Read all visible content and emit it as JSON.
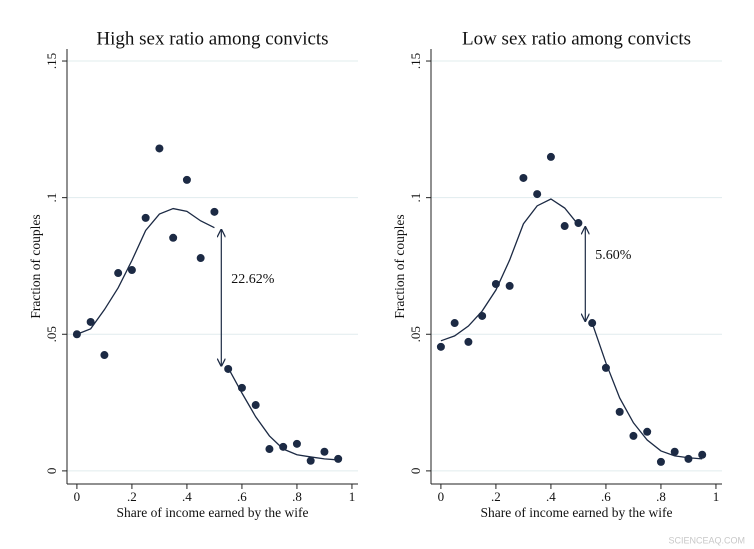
{
  "chart_data": [
    {
      "type": "scatter",
      "title": "High sex ratio among convicts",
      "xlabel": "Share of income earned by the wife",
      "ylabel": "Fraction of couples",
      "xlim": [
        -0.036,
        1.022
      ],
      "ylim": [
        -0.0048,
        0.1544
      ],
      "xticks": [
        0,
        {
          "value": 0.2,
          "label": ".2"
        },
        {
          "value": 0.4,
          "label": ".4"
        },
        {
          "value": 0.6,
          "label": ".6"
        },
        {
          "value": 0.8,
          "label": ".8"
        },
        1
      ],
      "yticks": [
        0,
        {
          "value": 0.05,
          "label": ".05"
        },
        {
          "value": 0.1,
          "label": ".1"
        },
        {
          "value": 0.15,
          "label": ".15"
        }
      ],
      "grid": true,
      "color": "#1c2a44",
      "annotation": "22.62%",
      "points": {
        "x": [
          0,
          0.05,
          0.1,
          0.15,
          0.2,
          0.25,
          0.3,
          0.35,
          0.4,
          0.45,
          0.5,
          0.55,
          0.6,
          0.65,
          0.7,
          0.75,
          0.8,
          0.85,
          0.9,
          0.95
        ],
        "values": [
          0.05,
          0.0545,
          0.0424,
          0.0724,
          0.0735,
          0.0926,
          0.118,
          0.0853,
          0.1065,
          0.0779,
          0.0948,
          0.0373,
          0.0304,
          0.0241,
          0.008,
          0.0088,
          0.0099,
          0.0037,
          0.007,
          0.0044
        ]
      },
      "lines": [
        {
          "x": [
            0,
            0.05,
            0.1,
            0.15,
            0.2,
            0.25,
            0.3,
            0.35,
            0.4,
            0.45,
            0.5
          ],
          "values": [
            0.05,
            0.052,
            0.059,
            0.067,
            0.077,
            0.088,
            0.094,
            0.096,
            0.095,
            0.0915,
            0.089
          ]
        },
        {
          "x": [
            0.55,
            0.6,
            0.65,
            0.7,
            0.75,
            0.8,
            0.85,
            0.9,
            0.95
          ],
          "values": [
            0.0377,
            0.0285,
            0.0198,
            0.0128,
            0.008,
            0.0059,
            0.0051,
            0.0044,
            0.004
          ]
        }
      ]
    },
    {
      "type": "scatter",
      "title": "Low sex ratio among convicts",
      "xlabel": "Share of income earned by the wife",
      "ylabel": "Fraction of couples",
      "xlim": [
        -0.036,
        1.022
      ],
      "ylim": [
        -0.0048,
        0.1544
      ],
      "xticks": [
        0,
        {
          "value": 0.2,
          "label": ".2"
        },
        {
          "value": 0.4,
          "label": ".4"
        },
        {
          "value": 0.6,
          "label": ".6"
        },
        {
          "value": 0.8,
          "label": ".8"
        },
        1
      ],
      "yticks": [
        0,
        {
          "value": 0.05,
          "label": ".05"
        },
        {
          "value": 0.1,
          "label": ".1"
        },
        {
          "value": 0.15,
          "label": ".15"
        }
      ],
      "grid": true,
      "color": "#1c2a44",
      "annotation": "5.60%",
      "points": {
        "x": [
          0,
          0.05,
          0.1,
          0.15,
          0.2,
          0.25,
          0.3,
          0.35,
          0.4,
          0.45,
          0.5,
          0.55,
          0.6,
          0.65,
          0.7,
          0.75,
          0.8,
          0.85,
          0.9,
          0.95
        ],
        "values": [
          0.0454,
          0.0541,
          0.0472,
          0.0567,
          0.0684,
          0.0677,
          0.1072,
          0.1013,
          0.1149,
          0.0896,
          0.0907,
          0.0541,
          0.0377,
          0.0216,
          0.0128,
          0.0143,
          0.0033,
          0.007,
          0.0044,
          0.0059
        ]
      },
      "lines": [
        {
          "x": [
            0,
            0.05,
            0.1,
            0.15,
            0.2,
            0.25,
            0.3,
            0.35,
            0.4,
            0.45,
            0.5
          ],
          "values": [
            0.0476,
            0.0494,
            0.053,
            0.0585,
            0.0662,
            0.0772,
            0.0904,
            0.097,
            0.0995,
            0.0962,
            0.09
          ]
        },
        {
          "x": [
            0.55,
            0.6,
            0.65,
            0.7,
            0.75,
            0.8,
            0.85,
            0.9,
            0.95
          ],
          "values": [
            0.0541,
            0.0395,
            0.0267,
            0.0176,
            0.0113,
            0.0073,
            0.0055,
            0.0048,
            0.0044
          ]
        }
      ]
    }
  ],
  "watermark": "SCIENCEAQ.COM"
}
